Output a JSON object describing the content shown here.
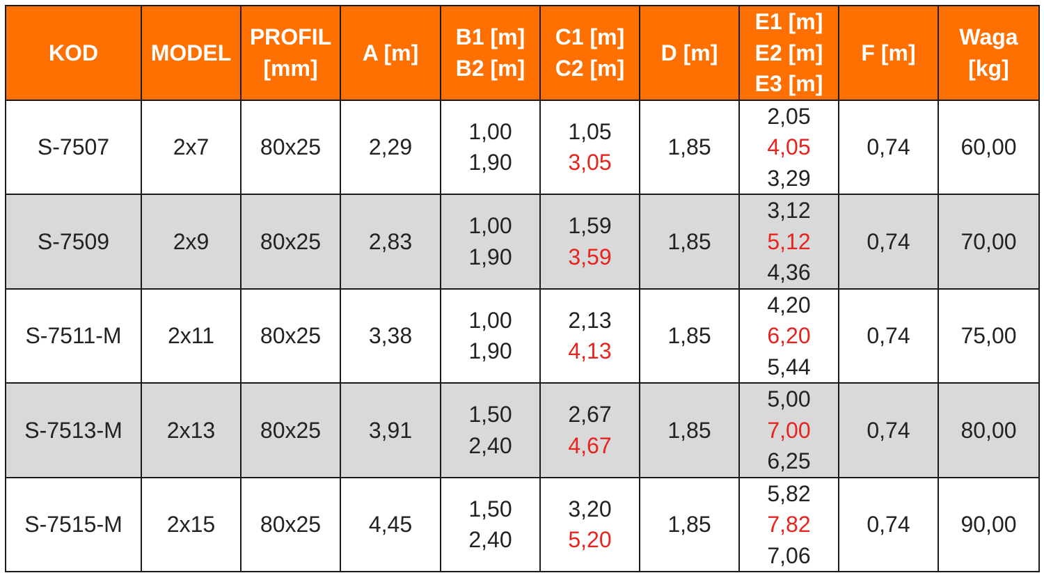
{
  "table": {
    "header": [
      [
        "KOD"
      ],
      [
        "MODEL"
      ],
      [
        "PROFIL",
        "[mm]"
      ],
      [
        "A [m]"
      ],
      [
        "B1 [m]",
        "B2 [m]"
      ],
      [
        "C1 [m]",
        "C2 [m]"
      ],
      [
        "D [m]"
      ],
      [
        "E1 [m]",
        "E2 [m]",
        "E3 [m]"
      ],
      [
        "F [m]"
      ],
      [
        "Waga",
        "[kg]"
      ]
    ],
    "highlight": {
      "column": [
        5,
        7
      ],
      "line": 1,
      "color": "#e8231e"
    },
    "rows": [
      [
        [
          "S-7507"
        ],
        [
          "2x7"
        ],
        [
          "80x25"
        ],
        [
          "2,29"
        ],
        [
          "1,00",
          "1,90"
        ],
        [
          "1,05",
          "3,05"
        ],
        [
          "1,85"
        ],
        [
          "2,05",
          "4,05",
          "3,29"
        ],
        [
          "0,74"
        ],
        [
          "60,00"
        ]
      ],
      [
        [
          "S-7509"
        ],
        [
          "2x9"
        ],
        [
          "80x25"
        ],
        [
          "2,83"
        ],
        [
          "1,00",
          "1,90"
        ],
        [
          "1,59",
          "3,59"
        ],
        [
          "1,85"
        ],
        [
          "3,12",
          "5,12",
          "4,36"
        ],
        [
          "0,74"
        ],
        [
          "70,00"
        ]
      ],
      [
        [
          "S-7511-M"
        ],
        [
          "2x11"
        ],
        [
          "80x25"
        ],
        [
          "3,38"
        ],
        [
          "1,00",
          "1,90"
        ],
        [
          "2,13",
          "4,13"
        ],
        [
          "1,85"
        ],
        [
          "4,20",
          "6,20",
          "5,44"
        ],
        [
          "0,74"
        ],
        [
          "75,00"
        ]
      ],
      [
        [
          "S-7513-M"
        ],
        [
          "2x13"
        ],
        [
          "80x25"
        ],
        [
          "3,91"
        ],
        [
          "1,50",
          "2,40"
        ],
        [
          "2,67",
          "4,67"
        ],
        [
          "1,85"
        ],
        [
          "5,00",
          "7,00",
          "6,25"
        ],
        [
          "0,74"
        ],
        [
          "80,00"
        ]
      ],
      [
        [
          "S-7515-M"
        ],
        [
          "2x15"
        ],
        [
          "80x25"
        ],
        [
          "4,45"
        ],
        [
          "1,50",
          "2,40"
        ],
        [
          "3,20",
          "5,20"
        ],
        [
          "1,85"
        ],
        [
          "5,82",
          "7,82",
          "7,06"
        ],
        [
          "0,74"
        ],
        [
          "90,00"
        ]
      ]
    ]
  }
}
